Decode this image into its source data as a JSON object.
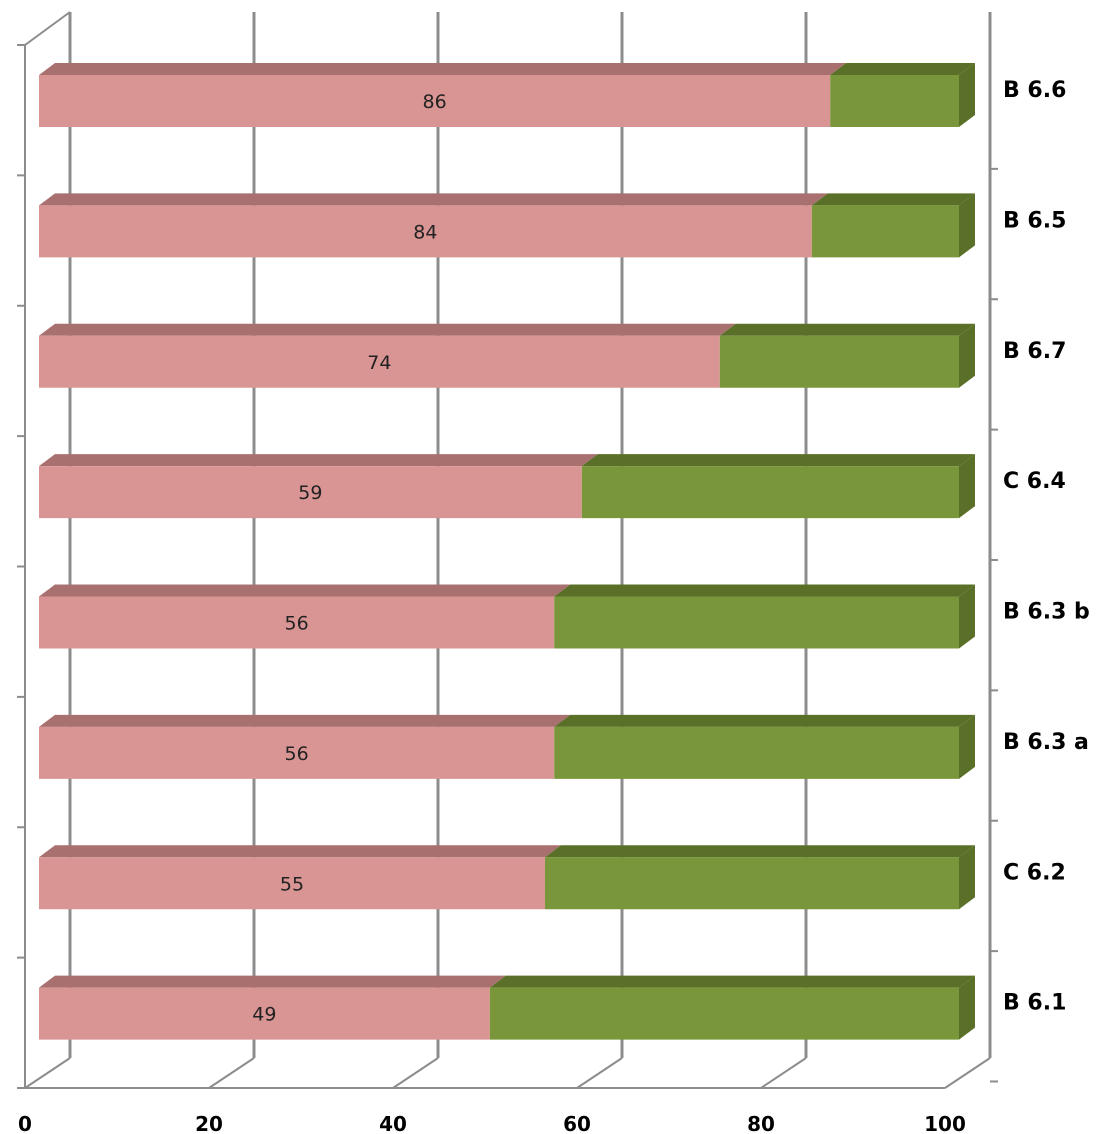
{
  "chart_data": {
    "type": "bar",
    "orientation": "horizontal",
    "stacked": true,
    "stack_total": 100,
    "categories": [
      "B 6.1",
      "C 6.2",
      "B 6.3 a",
      "B 6.3 b",
      "C 6.4",
      "B 6.7",
      "B 6.5",
      "B 6.6"
    ],
    "series": [
      {
        "values": [
          49,
          55,
          56,
          56,
          59,
          74,
          84,
          86
        ],
        "color": "#d99594",
        "top_color": "#a8716f",
        "data_labels": true
      },
      {
        "values": [
          51,
          45,
          44,
          44,
          41,
          26,
          16,
          14
        ],
        "color": "#7a963b",
        "top_color": "#5a7028",
        "data_labels": false
      }
    ],
    "x_ticks": [
      "0",
      "20",
      "40",
      "60",
      "80",
      "100"
    ],
    "xlim": [
      0,
      100
    ],
    "category_axis_position": "right",
    "grid": true,
    "grid_color": "#8c8c8c",
    "legend": "none",
    "style": "3d"
  }
}
